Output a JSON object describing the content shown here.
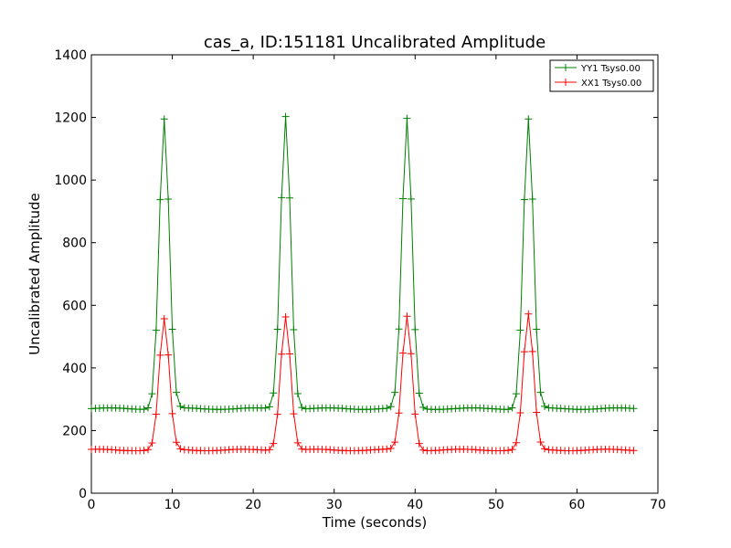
{
  "chart_data": {
    "type": "line",
    "title": "cas_a, ID:151181 Uncalibrated Amplitude",
    "xlabel": "Time (seconds)",
    "ylabel": "Uncalibrated Amplitude",
    "xlim": [
      0,
      70
    ],
    "ylim": [
      0,
      1400
    ],
    "xticks": [
      0,
      10,
      20,
      30,
      40,
      50,
      60,
      70
    ],
    "yticks": [
      0,
      200,
      400,
      600,
      800,
      1000,
      1200,
      1400
    ],
    "legend_position": "top-right",
    "grid": false,
    "series": [
      {
        "name": "YY1 Tsys0.00",
        "color": "#008000",
        "marker": "+",
        "baseline": 270,
        "peaks": [
          {
            "center": 9.0,
            "amplitude": 1195
          },
          {
            "center": 24.0,
            "amplitude": 1205
          },
          {
            "center": 39.0,
            "amplitude": 1195
          },
          {
            "center": 54.0,
            "amplitude": 1195
          }
        ]
      },
      {
        "name": "XX1 Tsys0.00",
        "color": "#ff0000",
        "marker": "+",
        "baseline": 138,
        "peaks": [
          {
            "center": 9.0,
            "amplitude": 555
          },
          {
            "center": 24.0,
            "amplitude": 565
          },
          {
            "center": 39.0,
            "amplitude": 565
          },
          {
            "center": 54.0,
            "amplitude": 570
          }
        ]
      }
    ],
    "x_range_data": [
      0,
      67.2
    ]
  }
}
